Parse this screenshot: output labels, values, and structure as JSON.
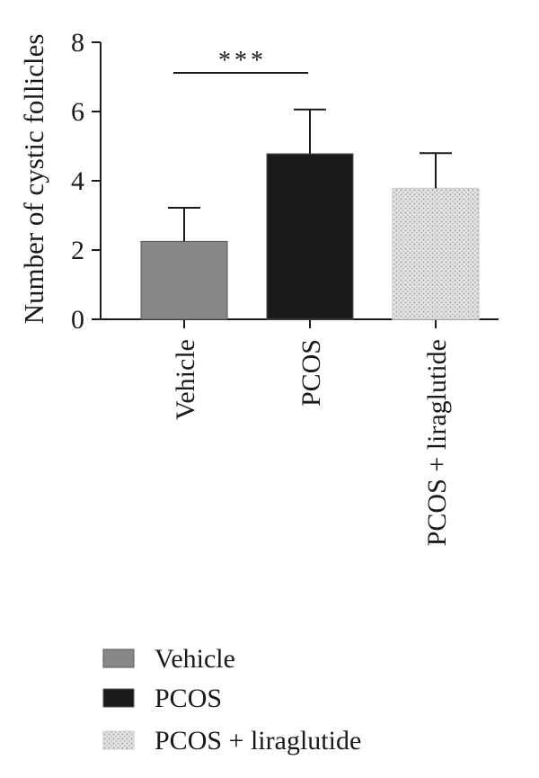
{
  "chart_data": {
    "type": "bar",
    "title": "",
    "xlabel": "",
    "ylabel": "Number of cystic follicles",
    "ylim": [
      0,
      8
    ],
    "yticks": [
      0,
      2,
      4,
      6,
      8
    ],
    "grid": false,
    "legend_placement": "bottom-left",
    "categories": [
      "Vehicle",
      "PCOS",
      "PCOS + liraglutide"
    ],
    "values": [
      2.25,
      4.78,
      3.78
    ],
    "errors": [
      0.97,
      1.28,
      1.02
    ],
    "colors": [
      "#888888",
      "#1a1a1a",
      "#d9d9d9"
    ],
    "patterns": [
      "solid",
      "solid",
      "dotted"
    ],
    "significance": [
      {
        "from": 0,
        "to": 1,
        "label": "***"
      }
    ]
  }
}
